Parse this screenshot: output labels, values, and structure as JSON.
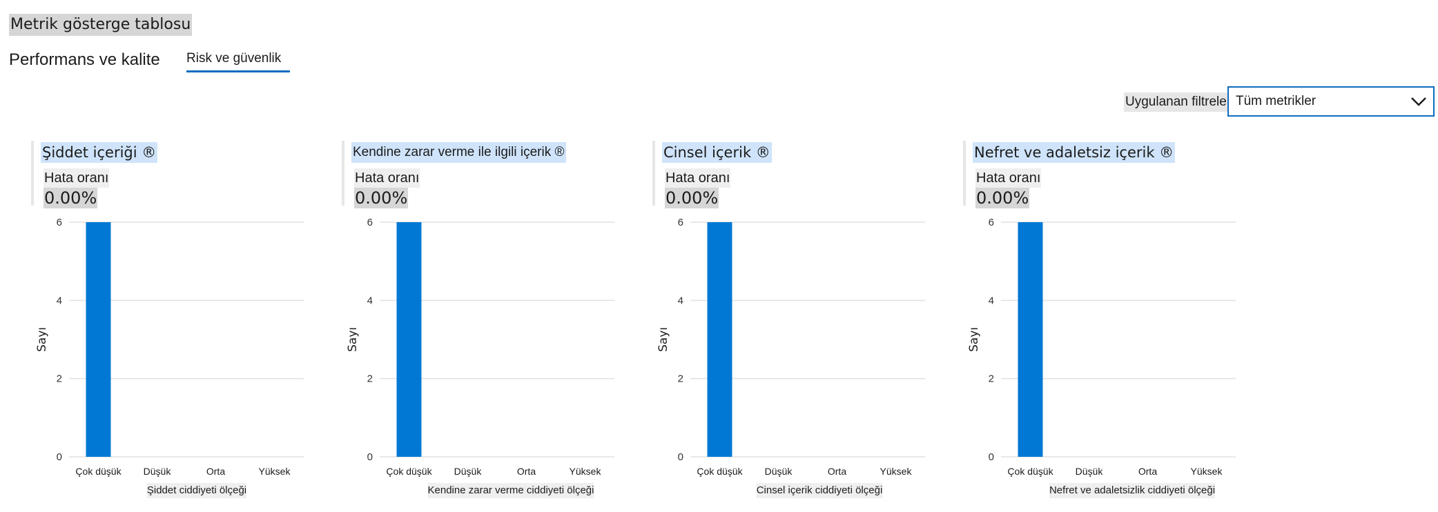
{
  "page": {
    "title": "Metrik gösterge tablosu",
    "tabs": [
      {
        "label": "Performans ve kalite",
        "selected": false
      },
      {
        "label": "Risk ve güvenlik",
        "selected": true
      }
    ]
  },
  "filters": {
    "label": "Uygulanan filtreler",
    "selected": "Tüm metrikler",
    "icon": "chevron-down-icon"
  },
  "colors": {
    "accent": "#0f6cbd",
    "bar": "#0078d4"
  },
  "cards": [
    {
      "title": "Şiddet içeriği ®",
      "metric_label": "Hata oranı",
      "metric_value": "0.00%"
    },
    {
      "title": "Kendine zarar verme ile ilgili içerik ®",
      "metric_label": "Hata oranı",
      "metric_value": "0.00%"
    },
    {
      "title": "Cinsel içerik ®",
      "metric_label": "Hata oranı",
      "metric_value": "0.00%"
    },
    {
      "title": "Nefret ve adaletsiz içerik ®",
      "metric_label": "Hata oranı",
      "metric_value": "0.00%"
    }
  ],
  "chart_data": [
    {
      "type": "bar",
      "categories": [
        "Çok düşük",
        "Düşük",
        "Orta",
        "Yüksek"
      ],
      "values": [
        6,
        0,
        0,
        0
      ],
      "xlabel": "Şiddet ciddiyeti ölçeği",
      "ylabel": "Sayı",
      "ylim": [
        0,
        6
      ],
      "yticks": [
        0,
        2,
        4,
        6
      ],
      "grid": true
    },
    {
      "type": "bar",
      "categories": [
        "Çok düşük",
        "Düşük",
        "Orta",
        "Yüksek"
      ],
      "values": [
        6,
        0,
        0,
        0
      ],
      "xlabel": "Kendine zarar verme ciddiyeti ölçeği",
      "ylabel": "Sayı",
      "ylim": [
        0,
        6
      ],
      "yticks": [
        0,
        2,
        4,
        6
      ],
      "grid": true
    },
    {
      "type": "bar",
      "categories": [
        "Çok düşük",
        "Düşük",
        "Orta",
        "Yüksek"
      ],
      "values": [
        6,
        0,
        0,
        0
      ],
      "xlabel": "Cinsel içerik ciddiyeti ölçeği",
      "ylabel": "Sayı",
      "ylim": [
        0,
        6
      ],
      "yticks": [
        0,
        2,
        4,
        6
      ],
      "grid": true
    },
    {
      "type": "bar",
      "categories": [
        "Çok düşük",
        "Düşük",
        "Orta",
        "Yüksek"
      ],
      "values": [
        6,
        0,
        0,
        0
      ],
      "xlabel": "Nefret ve adaletsizlik ciddiyeti ölçeği",
      "ylabel": "Sayı",
      "ylim": [
        0,
        6
      ],
      "yticks": [
        0,
        2,
        4,
        6
      ],
      "grid": true
    }
  ]
}
